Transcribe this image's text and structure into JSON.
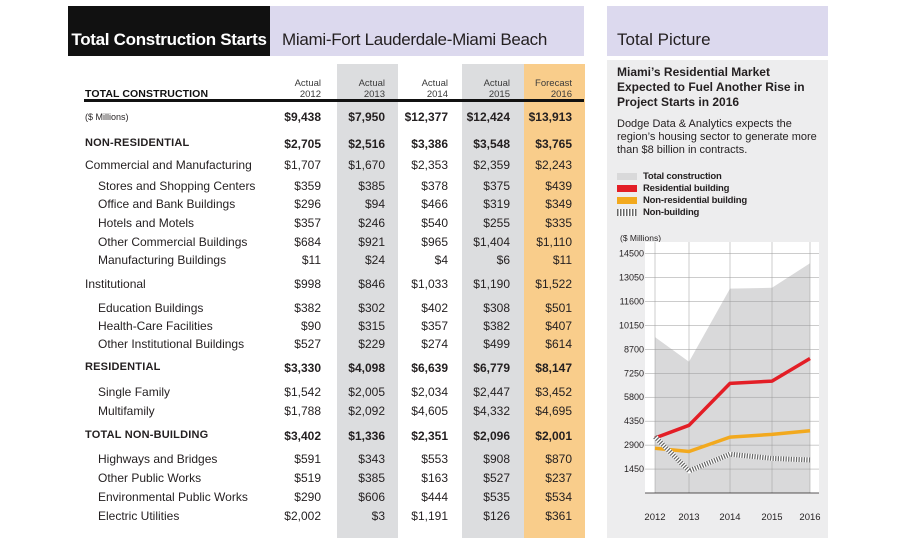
{
  "table": {
    "header_title": "Total Construction Starts",
    "header_region": "Miami-Fort Lauderdale-Miami Beach",
    "title": "TOTAL CONSTRUCTION",
    "columns": [
      {
        "kind": "Actual",
        "year": "2012"
      },
      {
        "kind": "Actual",
        "year": "2013"
      },
      {
        "kind": "Actual",
        "year": "2014"
      },
      {
        "kind": "Actual",
        "year": "2015"
      },
      {
        "kind": "Forecast",
        "year": "2016"
      }
    ],
    "rows": [
      {
        "label": "($ Millions)",
        "style": "small",
        "values": [
          "$9,438",
          "$7,950",
          "$12,377",
          "$12,424",
          "$13,913"
        ]
      },
      {
        "label": "NON-RESIDENTIAL",
        "style": "caps",
        "values": [
          "$2,705",
          "$2,516",
          "$3,386",
          "$3,548",
          "$3,765"
        ]
      },
      {
        "label": "Commercial and Manufacturing",
        "style": "group",
        "values": [
          "$1,707",
          "$1,670",
          "$2,353",
          "$2,359",
          "$2,243"
        ]
      },
      {
        "label": "Stores and Shopping Centers",
        "style": "sub",
        "values": [
          "$359",
          "$385",
          "$378",
          "$375",
          "$439"
        ]
      },
      {
        "label": "Office and Bank Buildings",
        "style": "sub",
        "values": [
          "$296",
          "$94",
          "$466",
          "$319",
          "$349"
        ]
      },
      {
        "label": "Hotels and Motels",
        "style": "sub",
        "values": [
          "$357",
          "$246",
          "$540",
          "$255",
          "$335"
        ]
      },
      {
        "label": "Other Commercial Buildings",
        "style": "sub",
        "values": [
          "$684",
          "$921",
          "$965",
          "$1,404",
          "$1,110"
        ]
      },
      {
        "label": "Manufacturing Buildings",
        "style": "sub",
        "values": [
          "$11",
          "$24",
          "$4",
          "$6",
          "$11"
        ]
      },
      {
        "label": "Institutional",
        "style": "group",
        "values": [
          "$998",
          "$846",
          "$1,033",
          "$1,190",
          "$1,522"
        ]
      },
      {
        "label": "Education Buildings",
        "style": "sub",
        "values": [
          "$382",
          "$302",
          "$402",
          "$308",
          "$501"
        ]
      },
      {
        "label": "Health-Care Facilities",
        "style": "sub",
        "values": [
          "$90",
          "$315",
          "$357",
          "$382",
          "$407"
        ]
      },
      {
        "label": "Other Institutional Buildings",
        "style": "sub",
        "values": [
          "$527",
          "$229",
          "$274",
          "$499",
          "$614"
        ]
      },
      {
        "label": "RESIDENTIAL",
        "style": "caps",
        "values": [
          "$3,330",
          "$4,098",
          "$6,639",
          "$6,779",
          "$8,147"
        ]
      },
      {
        "label": "Single Family",
        "style": "sub",
        "values": [
          "$1,542",
          "$2,005",
          "$2,034",
          "$2,447",
          "$3,452"
        ]
      },
      {
        "label": "Multifamily",
        "style": "sub",
        "values": [
          "$1,788",
          "$2,092",
          "$4,605",
          "$4,332",
          "$4,695"
        ]
      },
      {
        "label": "TOTAL NON-BUILDING",
        "style": "caps",
        "values": [
          "$3,402",
          "$1,336",
          "$2,351",
          "$2,096",
          "$2,001"
        ]
      },
      {
        "label": "Highways and Bridges",
        "style": "sub",
        "values": [
          "$591",
          "$343",
          "$553",
          "$908",
          "$870"
        ]
      },
      {
        "label": "Other Public Works",
        "style": "sub",
        "values": [
          "$519",
          "$385",
          "$163",
          "$527",
          "$237"
        ]
      },
      {
        "label": "Environmental Public Works",
        "style": "sub",
        "values": [
          "$290",
          "$606",
          "$444",
          "$535",
          "$534"
        ]
      },
      {
        "label": "Electric Utilities",
        "style": "sub",
        "values": [
          "$2,002",
          "$3",
          "$1,191",
          "$126",
          "$361"
        ]
      }
    ]
  },
  "panel": {
    "header": "Total Picture",
    "title": "Miami’s Residential Market Expected to Fuel Another Rise in Project Starts in 2016",
    "description": "Dodge Data & Analytics expects the region’s housing sector to generate more than $8 billion in contracts.",
    "unit_label": "($ Millions)",
    "legend": [
      {
        "label": "Total construction",
        "color": "#d9d9da",
        "pattern": "solid"
      },
      {
        "label": "Residential building",
        "color": "#e31e26",
        "pattern": "solid"
      },
      {
        "label": "Non-residential building",
        "color": "#f2a91e",
        "pattern": "solid"
      },
      {
        "label": "Non-building",
        "color": "#666666",
        "pattern": "hatched"
      }
    ]
  },
  "chart_data": {
    "type": "line",
    "x": [
      "2012",
      "2013",
      "2014",
      "2015",
      "2016"
    ],
    "y_ticks": [
      1450,
      2900,
      4350,
      5800,
      7250,
      8700,
      10150,
      11600,
      13050,
      14500
    ],
    "ylim": [
      0,
      15200
    ],
    "ylabel": "($ Millions)",
    "grid": true,
    "series": [
      {
        "name": "Total construction",
        "type": "area",
        "color": "#d9d9da",
        "values": [
          9438,
          7950,
          12377,
          12424,
          13913
        ]
      },
      {
        "name": "Residential building",
        "color": "#e31e26",
        "values": [
          3330,
          4098,
          6639,
          6779,
          8147
        ]
      },
      {
        "name": "Non-residential building",
        "color": "#f2a91e",
        "values": [
          2705,
          2516,
          3386,
          3548,
          3765
        ]
      },
      {
        "name": "Non-building",
        "color": "#666666",
        "pattern": "hatched",
        "values": [
          3402,
          1336,
          2351,
          2096,
          2001
        ]
      }
    ]
  }
}
